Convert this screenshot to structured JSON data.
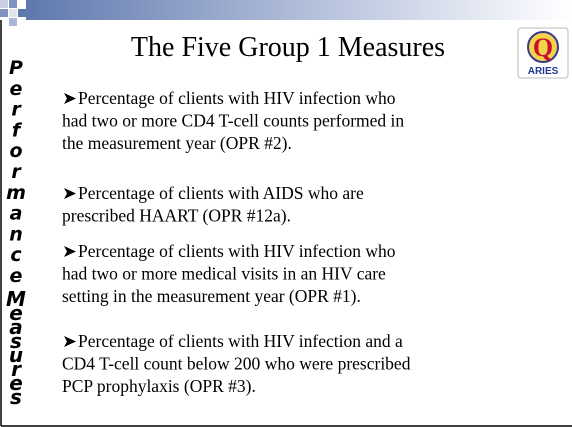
{
  "slide": {
    "title": "The Five Group 1 Measures",
    "side_title": [
      "Performance",
      "Measures"
    ],
    "logo": {
      "letter": "Q",
      "caption": "ARIES"
    },
    "bullets": [
      {
        "lines": [
          "Percentage of clients with HIV infection who",
          "had two or more CD4 T-cell counts performed in",
          "the measurement year (OPR #2)."
        ]
      },
      {
        "lines": [
          "Percentage of clients with AIDS who are",
          "prescribed HAART (OPR #12a)."
        ]
      },
      {
        "lines": [
          "Percentage of clients with HIV infection who",
          "had two or more medical visits in an HIV care",
          "setting in the measurement year (OPR #1)."
        ]
      },
      {
        "lines": [
          "Percentage of clients with HIV infection and a",
          "CD4 T-cell count below 200 who were prescribed",
          "PCP prophylaxis (OPR #3)."
        ]
      }
    ]
  }
}
